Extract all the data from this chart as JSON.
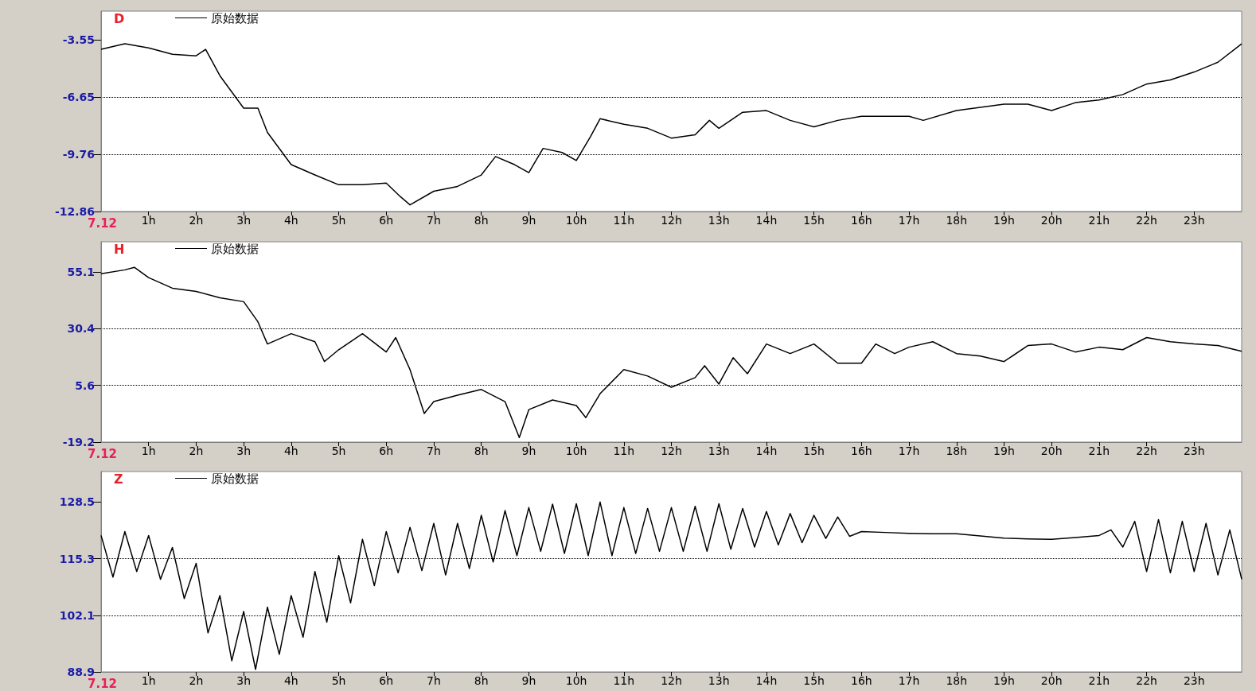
{
  "chart_data": [
    {
      "type": "line",
      "title": "D",
      "annotations": [
        "7.12"
      ],
      "legend": "top left",
      "grid": "y",
      "xlim": [
        0,
        24
      ],
      "ylim": [
        -12.86,
        -2.0
      ],
      "yticks": [
        -12.86,
        -9.76,
        -6.65,
        -3.55
      ],
      "xticks": [
        {
          "value": 1,
          "label": "1h"
        },
        {
          "value": 2,
          "label": "2h"
        },
        {
          "value": 3,
          "label": "3h"
        },
        {
          "value": 4,
          "label": "4h"
        },
        {
          "value": 5,
          "label": "5h"
        },
        {
          "value": 6,
          "label": "6h"
        },
        {
          "value": 7,
          "label": "7h"
        },
        {
          "value": 8,
          "label": "8h"
        },
        {
          "value": 9,
          "label": "9h"
        },
        {
          "value": 10,
          "label": "10h"
        },
        {
          "value": 11,
          "label": "11h"
        },
        {
          "value": 12,
          "label": "12h"
        },
        {
          "value": 13,
          "label": "13h"
        },
        {
          "value": 14,
          "label": "14h"
        },
        {
          "value": 15,
          "label": "15h"
        },
        {
          "value": 16,
          "label": "16h"
        },
        {
          "value": 17,
          "label": "17h"
        },
        {
          "value": 18,
          "label": "18h"
        },
        {
          "value": 19,
          "label": "19h"
        },
        {
          "value": 20,
          "label": "20h"
        },
        {
          "value": 21,
          "label": "21h"
        },
        {
          "value": 22,
          "label": "22h"
        },
        {
          "value": 23,
          "label": "23h"
        }
      ],
      "x": [
        0,
        0.5,
        1,
        1.5,
        2,
        2.2,
        2.5,
        3,
        3.3,
        3.5,
        4,
        4.5,
        5,
        5.5,
        6,
        6.3,
        6.5,
        7,
        7.5,
        8,
        8.3,
        8.7,
        9,
        9.3,
        9.7,
        10,
        10.3,
        10.5,
        11,
        11.5,
        12,
        12.5,
        12.8,
        13,
        13.5,
        14,
        14.5,
        15,
        15.5,
        16,
        17,
        17.3,
        18,
        19,
        19.5,
        20,
        20.5,
        21,
        21.5,
        22,
        22.5,
        23,
        23.5,
        24
      ],
      "series": [
        {
          "name": "原始数据",
          "color": "#000000",
          "values": [
            -4.07,
            -3.77,
            -3.99,
            -4.34,
            -4.42,
            -4.07,
            -5.5,
            -7.26,
            -7.26,
            -8.57,
            -10.32,
            -10.88,
            -11.41,
            -11.41,
            -11.32,
            -12.06,
            -12.5,
            -11.76,
            -11.5,
            -10.88,
            -9.88,
            -10.32,
            -10.75,
            -9.44,
            -9.66,
            -10.1,
            -8.79,
            -7.83,
            -8.13,
            -8.35,
            -8.88,
            -8.7,
            -7.92,
            -8.35,
            -7.48,
            -7.39,
            -7.92,
            -8.27,
            -7.92,
            -7.7,
            -7.7,
            -7.92,
            -7.39,
            -7.04,
            -7.04,
            -7.39,
            -6.96,
            -6.82,
            -6.52,
            -5.95,
            -5.73,
            -5.3,
            -4.77,
            -3.77
          ]
        }
      ]
    },
    {
      "type": "line",
      "title": "H",
      "annotations": [
        "7.12"
      ],
      "legend": "top left",
      "grid": "y",
      "xlim": [
        0,
        24
      ],
      "ylim": [
        -19.2,
        68.4
      ],
      "yticks": [
        -19.2,
        5.6,
        30.4,
        55.1
      ],
      "xticks": [
        {
          "value": 1,
          "label": "1h"
        },
        {
          "value": 2,
          "label": "2h"
        },
        {
          "value": 3,
          "label": "3h"
        },
        {
          "value": 4,
          "label": "4h"
        },
        {
          "value": 5,
          "label": "5h"
        },
        {
          "value": 6,
          "label": "6h"
        },
        {
          "value": 7,
          "label": "7h"
        },
        {
          "value": 8,
          "label": "8h"
        },
        {
          "value": 9,
          "label": "9h"
        },
        {
          "value": 10,
          "label": "10h"
        },
        {
          "value": 11,
          "label": "11h"
        },
        {
          "value": 12,
          "label": "12h"
        },
        {
          "value": 13,
          "label": "13h"
        },
        {
          "value": 14,
          "label": "14h"
        },
        {
          "value": 15,
          "label": "15h"
        },
        {
          "value": 16,
          "label": "16h"
        },
        {
          "value": 17,
          "label": "17h"
        },
        {
          "value": 18,
          "label": "18h"
        },
        {
          "value": 19,
          "label": "19h"
        },
        {
          "value": 20,
          "label": "20h"
        },
        {
          "value": 21,
          "label": "21h"
        },
        {
          "value": 22,
          "label": "22h"
        },
        {
          "value": 23,
          "label": "23h"
        }
      ],
      "x": [
        0,
        0.5,
        0.7,
        1,
        1.5,
        2,
        2.5,
        3,
        3.3,
        3.5,
        4,
        4.5,
        4.7,
        5,
        5.5,
        6,
        6.2,
        6.5,
        6.8,
        7,
        7.5,
        8,
        8.5,
        8.8,
        9,
        9.5,
        10,
        10.2,
        10.5,
        11,
        11.5,
        12,
        12.5,
        12.7,
        13,
        13.3,
        13.6,
        14,
        14.5,
        15,
        15.5,
        16,
        16.3,
        16.7,
        17,
        17.5,
        18,
        18.5,
        19,
        19.5,
        20,
        20.5,
        21,
        21.5,
        22,
        22.5,
        23,
        23.5,
        24
      ],
      "series": [
        {
          "name": "原始数据",
          "color": "#000000",
          "values": [
            54.4,
            56.1,
            57.2,
            52.7,
            48.1,
            46.7,
            43.9,
            42.2,
            33.4,
            23.7,
            28.2,
            24.7,
            16.0,
            21.2,
            28.2,
            20.2,
            26.5,
            12.5,
            -6.7,
            -1.5,
            1.3,
            3.8,
            -1.5,
            -17.2,
            -5.0,
            -0.8,
            -3.2,
            -8.5,
            2.0,
            12.5,
            9.7,
            4.8,
            9.0,
            14.2,
            6.2,
            17.7,
            10.7,
            23.7,
            19.5,
            23.7,
            15.3,
            15.3,
            23.7,
            19.5,
            22.3,
            24.7,
            19.5,
            18.4,
            16.0,
            23.0,
            23.7,
            20.2,
            22.3,
            21.2,
            26.5,
            24.7,
            23.7,
            23.0,
            20.5
          ]
        }
      ]
    },
    {
      "type": "line",
      "title": "Z",
      "annotations": [
        "7.12"
      ],
      "legend": "top left",
      "grid": "y",
      "xlim": [
        0,
        24
      ],
      "ylim": [
        88.9,
        135.6
      ],
      "yticks": [
        88.9,
        102.1,
        115.3,
        128.5
      ],
      "xticks": [
        {
          "value": 1,
          "label": "1h"
        },
        {
          "value": 2,
          "label": "2h"
        },
        {
          "value": 3,
          "label": "3h"
        },
        {
          "value": 4,
          "label": "4h"
        },
        {
          "value": 5,
          "label": "5h"
        },
        {
          "value": 6,
          "label": "6h"
        },
        {
          "value": 7,
          "label": "7h"
        },
        {
          "value": 8,
          "label": "8h"
        },
        {
          "value": 9,
          "label": "9h"
        },
        {
          "value": 10,
          "label": "10h"
        },
        {
          "value": 11,
          "label": "11h"
        },
        {
          "value": 12,
          "label": "12h"
        },
        {
          "value": 13,
          "label": "13h"
        },
        {
          "value": 14,
          "label": "14h"
        },
        {
          "value": 15,
          "label": "15h"
        },
        {
          "value": 16,
          "label": "16h"
        },
        {
          "value": 17,
          "label": "17h"
        },
        {
          "value": 18,
          "label": "18h"
        },
        {
          "value": 19,
          "label": "19h"
        },
        {
          "value": 20,
          "label": "20h"
        },
        {
          "value": 21,
          "label": "21h"
        },
        {
          "value": 22,
          "label": "22h"
        },
        {
          "value": 23,
          "label": "23h"
        }
      ],
      "x": [
        0,
        0.25,
        0.5,
        0.75,
        1,
        1.25,
        1.5,
        1.75,
        2,
        2.25,
        2.5,
        2.75,
        3,
        3.25,
        3.5,
        3.75,
        4,
        4.25,
        4.5,
        4.75,
        5,
        5.25,
        5.5,
        5.75,
        6,
        6.25,
        6.5,
        6.75,
        7,
        7.25,
        7.5,
        7.75,
        8,
        8.25,
        8.5,
        8.75,
        9,
        9.25,
        9.5,
        9.75,
        10,
        10.25,
        10.5,
        10.75,
        11,
        11.25,
        11.5,
        11.75,
        12,
        12.25,
        12.5,
        12.75,
        13,
        13.25,
        13.5,
        13.75,
        14,
        14.25,
        14.5,
        14.75,
        15,
        15.25,
        15.5,
        15.75,
        16,
        16.5,
        17,
        17.5,
        18,
        18.5,
        19,
        19.5,
        20,
        20.5,
        21,
        21.25,
        21.5,
        21.75,
        22,
        22.25,
        22.5,
        22.75,
        23,
        23.25,
        23.5,
        23.75,
        24
      ],
      "series": [
        {
          "name": "原始数据",
          "color": "#000000",
          "values": [
            120.7,
            111,
            121.6,
            112.3,
            120.7,
            110.5,
            117.9,
            106,
            114.2,
            98,
            106.7,
            91.5,
            103,
            89.5,
            104,
            93,
            106.7,
            97,
            112.3,
            100.5,
            116,
            105,
            119.8,
            109,
            121.6,
            112,
            122.6,
            112.5,
            123.5,
            111.5,
            123.5,
            113,
            125.4,
            114.5,
            126.5,
            116,
            127.2,
            117,
            128,
            116.5,
            128.1,
            116,
            128.5,
            116,
            127.2,
            116.5,
            127,
            117,
            127.2,
            117,
            127.5,
            117,
            128.1,
            117.5,
            127,
            118,
            126.3,
            118.5,
            125.8,
            119,
            125.4,
            120,
            125,
            120.5,
            121.6,
            121.4,
            121.2,
            121.1,
            121.1,
            120.6,
            120.1,
            119.9,
            119.8,
            120.2,
            120.7,
            122,
            118,
            124,
            112.3,
            124.4,
            112,
            124,
            112.3,
            123.5,
            111.5,
            122,
            110.5
          ]
        }
      ]
    }
  ]
}
